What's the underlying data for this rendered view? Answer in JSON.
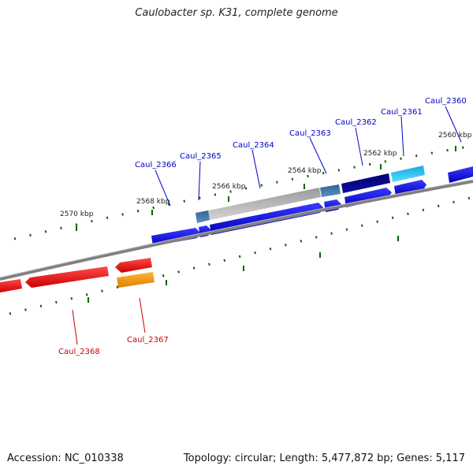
{
  "title": "Caulobacter sp. K31, complete genome",
  "footer": {
    "accession": "Accession: NC_010338",
    "topology": "Topology: circular; Length: 5,477,872 bp; Genes: 5,117"
  },
  "scale_labels": [
    "2570 kbp",
    "2568 kbp",
    "2566 kbp",
    "2564 kbp",
    "2562 kbp",
    "2560 kbp"
  ],
  "genes": [
    {
      "name": "Caul_2360",
      "color": "#0000cc"
    },
    {
      "name": "Caul_2361",
      "color": "#0000cc"
    },
    {
      "name": "Caul_2362",
      "color": "#0000cc"
    },
    {
      "name": "Caul_2363",
      "color": "#0000cc"
    },
    {
      "name": "Caul_2364",
      "color": "#0000cc"
    },
    {
      "name": "Caul_2365",
      "color": "#0000cc"
    },
    {
      "name": "Caul_2366",
      "color": "#0000cc"
    },
    {
      "name": "Caul_2367",
      "color": "#cc0000"
    },
    {
      "name": "Caul_2368",
      "color": "#cc0000"
    }
  ],
  "colors": {
    "forward_strand": "#0000dd",
    "reverse_strand": "#ee0000",
    "reverse_strand_alt": "#ff9900",
    "backbone": "#808080",
    "tick": "#006600",
    "cog_light_blue": "#33ccff",
    "cog_navy": "#000080",
    "cog_steel": "#4477aa",
    "cog_gray": "#b0b0b0"
  }
}
